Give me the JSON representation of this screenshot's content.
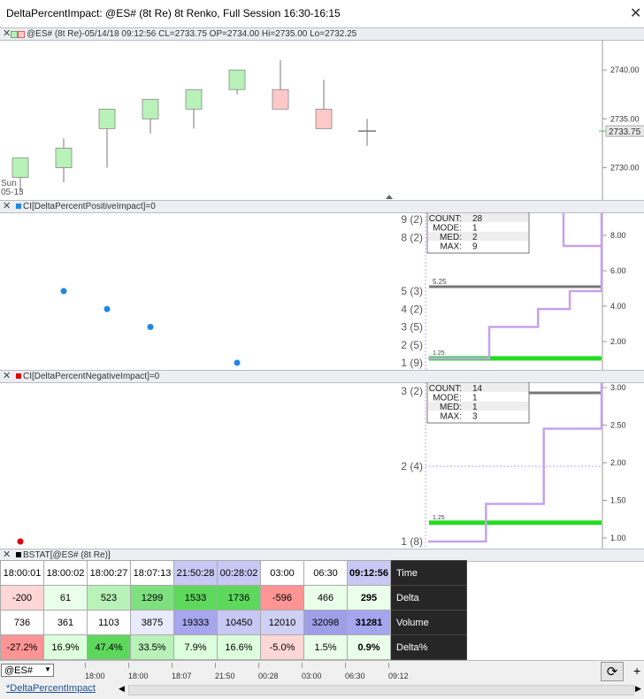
{
  "window": {
    "title": "DeltaPercentImpact: @ES# (8t Re) 8t Renko, Full Session 16:30-16:15"
  },
  "panels": {
    "price": {
      "label": "@ES# (8t Re)-05/14/18 09:12:56 CL=2733.75 OP=2734.00 Hi=2735.00 Lo=2732.25",
      "date_label_1": "Sun",
      "date_label_2": "05-13",
      "last_price_tag": "2733.75"
    },
    "positive": {
      "label": "CI[DeltaPercentPositiveImpact]=0",
      "stats_keys": [
        "COUNT:",
        "MODE:",
        "MED:",
        "MAX:"
      ],
      "stats_values": [
        "28",
        "1",
        "2",
        "9"
      ],
      "mean_label": "5.25",
      "low_label": "1.25"
    },
    "negative": {
      "label": "CI[DeltaPercentNegativeImpact]=0",
      "stats_keys": [
        "COUNT:",
        "MODE:",
        "MED:",
        "MAX:"
      ],
      "stats_values": [
        "14",
        "1",
        "1",
        "3"
      ],
      "low_label": "1.25"
    },
    "bstat": {
      "label": "BSTAT[@ES# (8t Re)]"
    }
  },
  "chart_data": [
    {
      "type": "candlestick",
      "yticks": [
        "2740.00",
        "2735.00",
        "2730.00"
      ],
      "ylim": [
        2726.7,
        2743.0
      ],
      "candles": [
        {
          "o": 2729.0,
          "c": 2731.0,
          "h": 2731.0,
          "l": 2727.5,
          "color": "#b8f2b8"
        },
        {
          "o": 2730.0,
          "c": 2732.0,
          "h": 2733.0,
          "l": 2728.5,
          "color": "#b8f2b8"
        },
        {
          "o": 2734.0,
          "c": 2736.0,
          "h": 2736.0,
          "l": 2730.0,
          "color": "#b8f2b8"
        },
        {
          "o": 2735.0,
          "c": 2737.0,
          "h": 2737.0,
          "l": 2733.5,
          "color": "#b8f2b8"
        },
        {
          "o": 2736.0,
          "c": 2738.0,
          "h": 2738.0,
          "l": 2734.0,
          "color": "#b8f2b8"
        },
        {
          "o": 2738.0,
          "c": 2740.0,
          "h": 2740.0,
          "l": 2737.5,
          "color": "#b8f2b8"
        },
        {
          "o": 2738.0,
          "c": 2736.0,
          "h": 2741.0,
          "l": 2736.0,
          "color": "#ffc8c8"
        },
        {
          "o": 2736.0,
          "c": 2734.0,
          "h": 2739.0,
          "l": 2734.0,
          "color": "#ffc8c8"
        },
        {
          "o": 2734.0,
          "c": 2733.75,
          "h": 2735.0,
          "l": 2732.25,
          "color": "#ffffff"
        }
      ]
    },
    {
      "type": "scatter",
      "name": "CI[DeltaPercentPositiveImpact]",
      "points": [
        5,
        4,
        3,
        1
      ],
      "point_color": "#1e88e5",
      "ylim": [
        1,
        9
      ],
      "freq_labels": [
        "9 (2)",
        "8 (2)",
        "5 (3)",
        "4 (2)",
        "3 (5)",
        "2 (5)",
        "1 (9)"
      ],
      "freq_values": [
        9,
        8,
        5,
        4,
        3,
        2,
        1
      ],
      "yticks": [
        "8.00",
        "6.00",
        "4.00",
        "2.00"
      ],
      "ytick_values": [
        8,
        6,
        4,
        2
      ],
      "mean": 5.25,
      "low": 1.25,
      "cdf_steps": [
        [
          1.25,
          1.25
        ],
        [
          3.0,
          2.5
        ],
        [
          4.0,
          4.5
        ],
        [
          5.0,
          5.8
        ],
        [
          9.0,
          7.1
        ]
      ]
    },
    {
      "type": "scatter",
      "name": "CI[DeltaPercentNegativeImpact]",
      "points": [
        1
      ],
      "point_color": "#dd0000",
      "ylim": [
        1,
        3
      ],
      "freq_labels": [
        "3 (2)",
        "2 (4)",
        "1 (8)"
      ],
      "freq_values": [
        3,
        2,
        1
      ],
      "yticks": [
        "3.00",
        "2.50",
        "2.00",
        "1.50",
        "1.00"
      ],
      "ytick_values": [
        3.0,
        2.5,
        2.0,
        1.5,
        1.0
      ],
      "low": 1.25,
      "cdf_steps": [
        [
          1.0,
          0.0
        ],
        [
          1.5,
          1.0
        ],
        [
          2.5,
          2.0
        ],
        [
          3.0,
          3.0
        ]
      ]
    },
    {
      "type": "table",
      "columns": [
        "18:00:01",
        "18:00:02",
        "18:00:27",
        "18:07:13",
        "21:50:28",
        "00:28:02",
        "03:00",
        "06:30",
        "09:12:56"
      ],
      "rows": [
        {
          "label": "Time"
        },
        {
          "label": "Delta",
          "values": [
            "-200",
            "61",
            "523",
            "1299",
            "1533",
            "1736",
            "-596",
            "466",
            "295"
          ]
        },
        {
          "label": "Volume",
          "values": [
            "736",
            "361",
            "1103",
            "3875",
            "19333",
            "10450",
            "12010",
            "32098",
            "31281"
          ]
        },
        {
          "label": "Delta%",
          "values": [
            "-27.2%",
            "16.9%",
            "47.4%",
            "33.5%",
            "7.9%",
            "16.6%",
            "-5.0%",
            "1.5%",
            "0.9%"
          ]
        }
      ]
    }
  ],
  "bottom": {
    "symbol": "@ES#",
    "time_labels": [
      "18:00",
      "18:00",
      "18:07",
      "21:50",
      "00:28",
      "03:00",
      "06:30",
      "09:12"
    ],
    "tab_label": "*DeltaPercentImpact"
  },
  "colors": {
    "up": "#b8f2b8",
    "down": "#ffc8c8",
    "purple": "#c7a1ef",
    "green": "#22dd22",
    "blue": "#1e88e5",
    "red": "#dd0000"
  }
}
